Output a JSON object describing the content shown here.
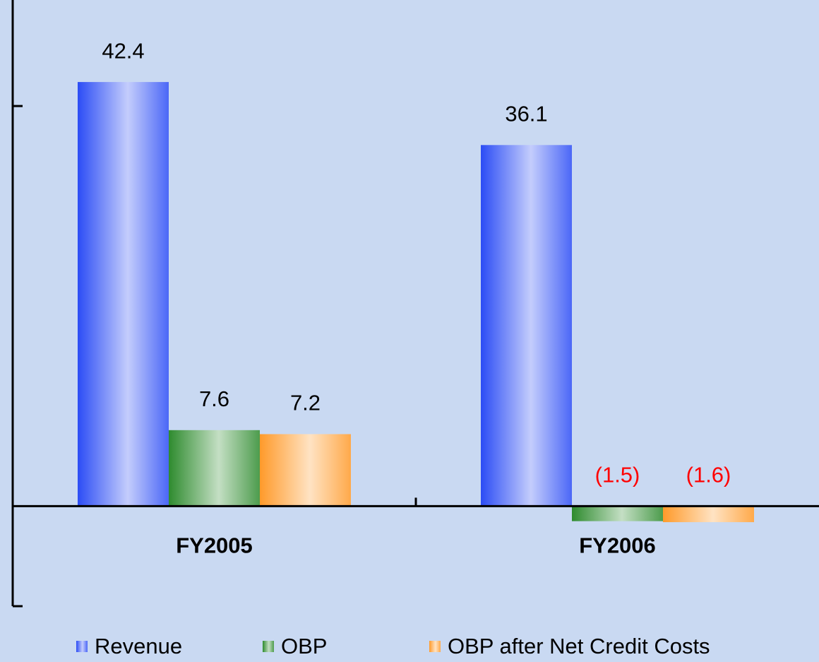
{
  "chart_data": {
    "type": "bar",
    "categories": [
      "FY2005",
      "FY2006"
    ],
    "series": [
      {
        "name": "Revenue",
        "color": "#2b4cf5",
        "values": [
          42.4,
          36.1
        ]
      },
      {
        "name": "OBP",
        "color": "#2e8b2e",
        "values": [
          7.6,
          -1.5
        ],
        "value_labels": [
          "7.6",
          "(1.5)"
        ]
      },
      {
        "name": "OBP after Net Credit Costs",
        "color": "#ff9a2a",
        "values": [
          7.2,
          -1.6
        ],
        "value_labels": [
          "7.2",
          "(1.6)"
        ]
      }
    ],
    "ylim": [
      -10,
      50.6
    ],
    "yticks": [
      -10,
      40
    ],
    "grid": false,
    "label_color": "#000000",
    "negative_label_color": "#ff0000",
    "background": "#c9d9f2",
    "legend": "bottom"
  }
}
